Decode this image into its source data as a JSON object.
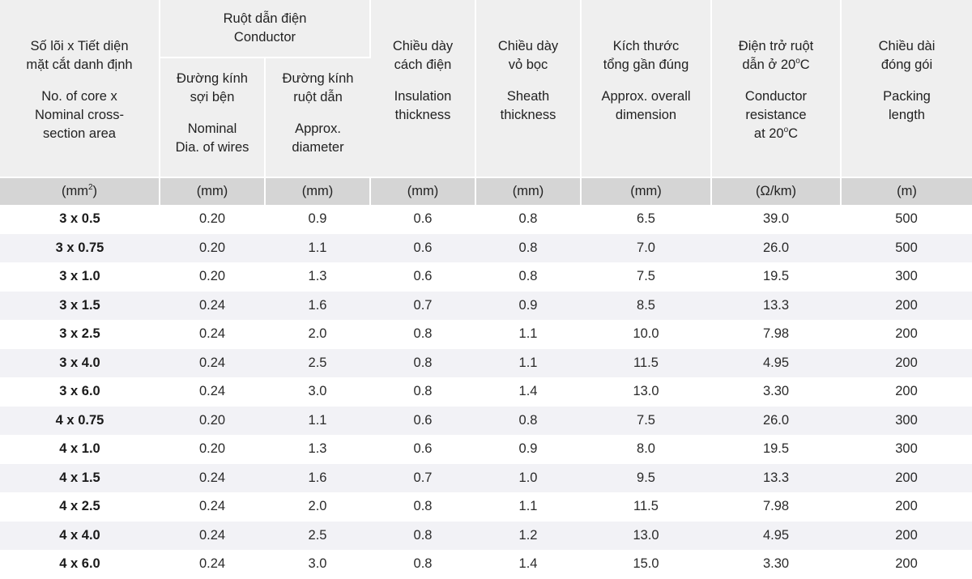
{
  "header": {
    "size": {
      "vi_1": "Số lõi x Tiết diện",
      "vi_2": "mặt cắt danh định",
      "en_1": "No. of core x",
      "en_2": "Nominal cross-",
      "en_3": "section area",
      "unit_base": "(mm",
      "unit_sup": "2",
      "unit_end": ")"
    },
    "conductor_group": {
      "vi": "Ruột dẫn điện",
      "en": "Conductor"
    },
    "wire_dia": {
      "vi_1": "Đường kính",
      "vi_2": "sợi bện",
      "en_1": "Nominal",
      "en_2": "Dia. of wires",
      "unit": "(mm)"
    },
    "cond_dia": {
      "vi_1": "Đường kính",
      "vi_2": "ruột dẫn",
      "en_1": "Approx.",
      "en_2": "diameter",
      "unit": "(mm)"
    },
    "insulation": {
      "vi_1": "Chiều dày",
      "vi_2": "cách điện",
      "en_1": "Insulation",
      "en_2": "thickness",
      "unit": "(mm)"
    },
    "sheath": {
      "vi_1": "Chiều dày",
      "vi_2": "vỏ bọc",
      "en_1": "Sheath",
      "en_2": "thickness",
      "unit": "(mm)"
    },
    "overall": {
      "vi_1": "Kích thước",
      "vi_2": "tổng gần đúng",
      "en_1": "Approx. overall",
      "en_2": "dimension",
      "unit": "(mm)"
    },
    "resistance": {
      "vi_1": "Điện trở ruột",
      "vi_2a": "dẫn ở  20",
      "vi_sup": "o",
      "vi_2b": "C",
      "en_1": "Conductor",
      "en_2": "resistance",
      "en_3a": "at  20",
      "en_sup": "o",
      "en_3b": "C",
      "unit": "(Ω/km)"
    },
    "packing": {
      "vi_1": "Chiều dài",
      "vi_2": "đóng gói",
      "en_1": "Packing",
      "en_2": "length",
      "unit": "(m)"
    }
  },
  "rows": [
    {
      "size": "3 x 0.5",
      "wire": "0.20",
      "cond": "0.9",
      "ins": "0.6",
      "sheath": "0.8",
      "overall": "6.5",
      "res": "39.0",
      "pack": "500"
    },
    {
      "size": "3 x 0.75",
      "wire": "0.20",
      "cond": "1.1",
      "ins": "0.6",
      "sheath": "0.8",
      "overall": "7.0",
      "res": "26.0",
      "pack": "500"
    },
    {
      "size": "3 x 1.0",
      "wire": "0.20",
      "cond": "1.3",
      "ins": "0.6",
      "sheath": "0.8",
      "overall": "7.5",
      "res": "19.5",
      "pack": "300"
    },
    {
      "size": "3 x 1.5",
      "wire": "0.24",
      "cond": "1.6",
      "ins": "0.7",
      "sheath": "0.9",
      "overall": "8.5",
      "res": "13.3",
      "pack": "200"
    },
    {
      "size": "3 x 2.5",
      "wire": "0.24",
      "cond": "2.0",
      "ins": "0.8",
      "sheath": "1.1",
      "overall": "10.0",
      "res": "7.98",
      "pack": "200"
    },
    {
      "size": "3 x 4.0",
      "wire": "0.24",
      "cond": "2.5",
      "ins": "0.8",
      "sheath": "1.1",
      "overall": "11.5",
      "res": "4.95",
      "pack": "200"
    },
    {
      "size": "3 x 6.0",
      "wire": "0.24",
      "cond": "3.0",
      "ins": "0.8",
      "sheath": "1.4",
      "overall": "13.0",
      "res": "3.30",
      "pack": "200"
    },
    {
      "size": "4 x 0.75",
      "wire": "0.20",
      "cond": "1.1",
      "ins": "0.6",
      "sheath": "0.8",
      "overall": "7.5",
      "res": "26.0",
      "pack": "300"
    },
    {
      "size": "4 x 1.0",
      "wire": "0.20",
      "cond": "1.3",
      "ins": "0.6",
      "sheath": "0.9",
      "overall": "8.0",
      "res": "19.5",
      "pack": "300"
    },
    {
      "size": "4 x 1.5",
      "wire": "0.24",
      "cond": "1.6",
      "ins": "0.7",
      "sheath": "1.0",
      "overall": "9.5",
      "res": "13.3",
      "pack": "200"
    },
    {
      "size": "4 x 2.5",
      "wire": "0.24",
      "cond": "2.0",
      "ins": "0.8",
      "sheath": "1.1",
      "overall": "11.5",
      "res": "7.98",
      "pack": "200"
    },
    {
      "size": "4 x 4.0",
      "wire": "0.24",
      "cond": "2.5",
      "ins": "0.8",
      "sheath": "1.2",
      "overall": "13.0",
      "res": "4.95",
      "pack": "200"
    },
    {
      "size": "4 x 6.0",
      "wire": "0.24",
      "cond": "3.0",
      "ins": "0.8",
      "sheath": "1.4",
      "overall": "15.0",
      "res": "3.30",
      "pack": "200"
    }
  ]
}
